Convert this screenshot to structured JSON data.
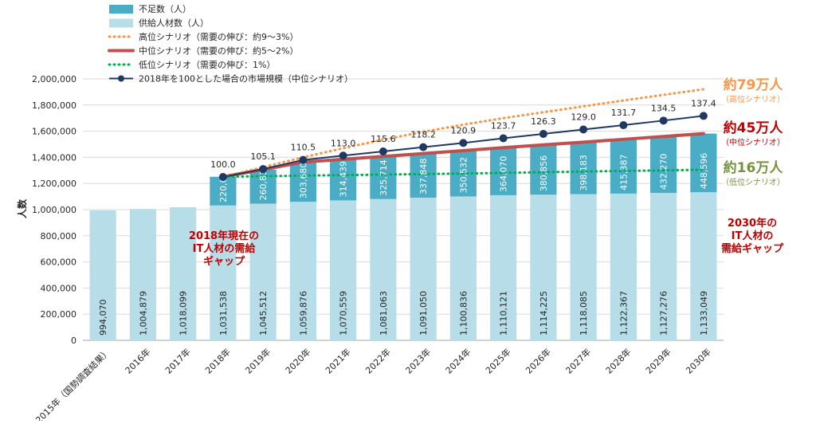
{
  "chart_data": {
    "type": "bar",
    "ylabel": "人数",
    "ylim": [
      0,
      2000000
    ],
    "yticks": [
      "0",
      "200,000",
      "400,000",
      "600,000",
      "800,000",
      "1,000,000",
      "1,200,000",
      "1,400,000",
      "1,600,000",
      "1,800,000",
      "2,000,000"
    ],
    "categories": [
      "2015年（国勢調査結果）",
      "2016年",
      "2017年",
      "2018年",
      "2019年",
      "2020年",
      "2021年",
      "2022年",
      "2023年",
      "2024年",
      "2025年",
      "2026年",
      "2027年",
      "2028年",
      "2029年",
      "2030年"
    ],
    "stacked": true,
    "grid": true,
    "legend_position": "top-left",
    "series": [
      {
        "name": "不足数（人）",
        "kind": "bar",
        "color": "#4bacc6",
        "values": [
          null,
          null,
          null,
          220000,
          260835,
          303680,
          314439,
          325714,
          337848,
          350532,
          364070,
          380856,
          398183,
          415387,
          432270,
          448596
        ],
        "labels": [
          "",
          "",
          "",
          "220,000",
          "260,835",
          "303,680",
          "314,439",
          "325,714",
          "337,848",
          "350,532",
          "364,070",
          "380,856",
          "398,183",
          "415,387",
          "432,270",
          "448,596"
        ]
      },
      {
        "name": "供給人材数（人）",
        "kind": "bar",
        "color": "#b7dde8",
        "values": [
          994070,
          1004879,
          1018099,
          1031538,
          1045512,
          1059876,
          1070559,
          1081063,
          1091050,
          1100836,
          1110121,
          1114225,
          1118085,
          1122367,
          1127276,
          1133049
        ],
        "labels": [
          "994,070",
          "1,004,879",
          "1,018,099",
          "1,031,538",
          "1,045,512",
          "1,059,876",
          "1,070,559",
          "1,081,063",
          "1,091,050",
          "1,100,836",
          "1,110,121",
          "1,114,225",
          "1,118,085",
          "1,122,367",
          "1,127,276",
          "1,133,049"
        ]
      },
      {
        "name": "高位シナリオ（需要の伸び：約9～3%）",
        "kind": "line",
        "style": "dotted",
        "color": "#f79646",
        "values": [
          null,
          null,
          null,
          1251538,
          1325000,
          1400000,
          1470000,
          1535000,
          1595000,
          1650000,
          1700000,
          1745000,
          1790000,
          1835000,
          1878000,
          1921000
        ]
      },
      {
        "name": "中位シナリオ（需要の伸び：約5～2%）",
        "kind": "line",
        "style": "solid",
        "color": "#c0504d",
        "values": [
          null,
          null,
          null,
          1251538,
          1306347,
          1363556,
          1384998,
          1406777,
          1428898,
          1451368,
          1474191,
          1495081,
          1516268,
          1537754,
          1559546,
          1581645
        ]
      },
      {
        "name": "低位シナリオ（需要の伸び：1%）",
        "kind": "line",
        "style": "dotted",
        "color": "#00b050",
        "values": [
          null,
          null,
          null,
          1251538,
          1255000,
          1260000,
          1264000,
          1268000,
          1272000,
          1276000,
          1281000,
          1286000,
          1291000,
          1296000,
          1300000,
          1305000
        ]
      },
      {
        "name": "2018年を100とした場合の市場規模（中位シナリオ）",
        "kind": "line",
        "style": "marker",
        "color": "#1f3864",
        "plotted_at": [
          null,
          null,
          null,
          1250000,
          1310000,
          1380000,
          1413000,
          1445000,
          1478000,
          1510000,
          1546000,
          1579000,
          1613000,
          1646000,
          1681000,
          1717000
        ],
        "values": [
          null,
          null,
          null,
          100.0,
          105.1,
          110.5,
          113.0,
          115.6,
          118.2,
          120.9,
          123.7,
          126.3,
          129.0,
          131.7,
          134.5,
          137.4
        ],
        "labels": [
          "",
          "",
          "",
          "100.0",
          "105.1",
          "110.5",
          "113.0",
          "115.6",
          "118.2",
          "120.9",
          "123.7",
          "126.3",
          "129.0",
          "131.7",
          "134.5",
          "137.4"
        ]
      }
    ],
    "annotations": {
      "gap_2018": [
        "2018年現在の",
        "IT人材の需給",
        "ギャップ"
      ],
      "gap_2030": [
        "2030年の",
        "IT人材の",
        "需給ギャップ"
      ],
      "high_value": "約79万人",
      "high_sub": "（高位シナリオ）",
      "mid_value": "約45万人",
      "mid_sub": "（中位シナリオ）",
      "low_value": "約16万人",
      "low_sub": "（低位シナリオ）"
    },
    "colors": {
      "annotation_red": "#c00000",
      "high_orange": "#f79646",
      "low_green": "#76923c"
    }
  }
}
